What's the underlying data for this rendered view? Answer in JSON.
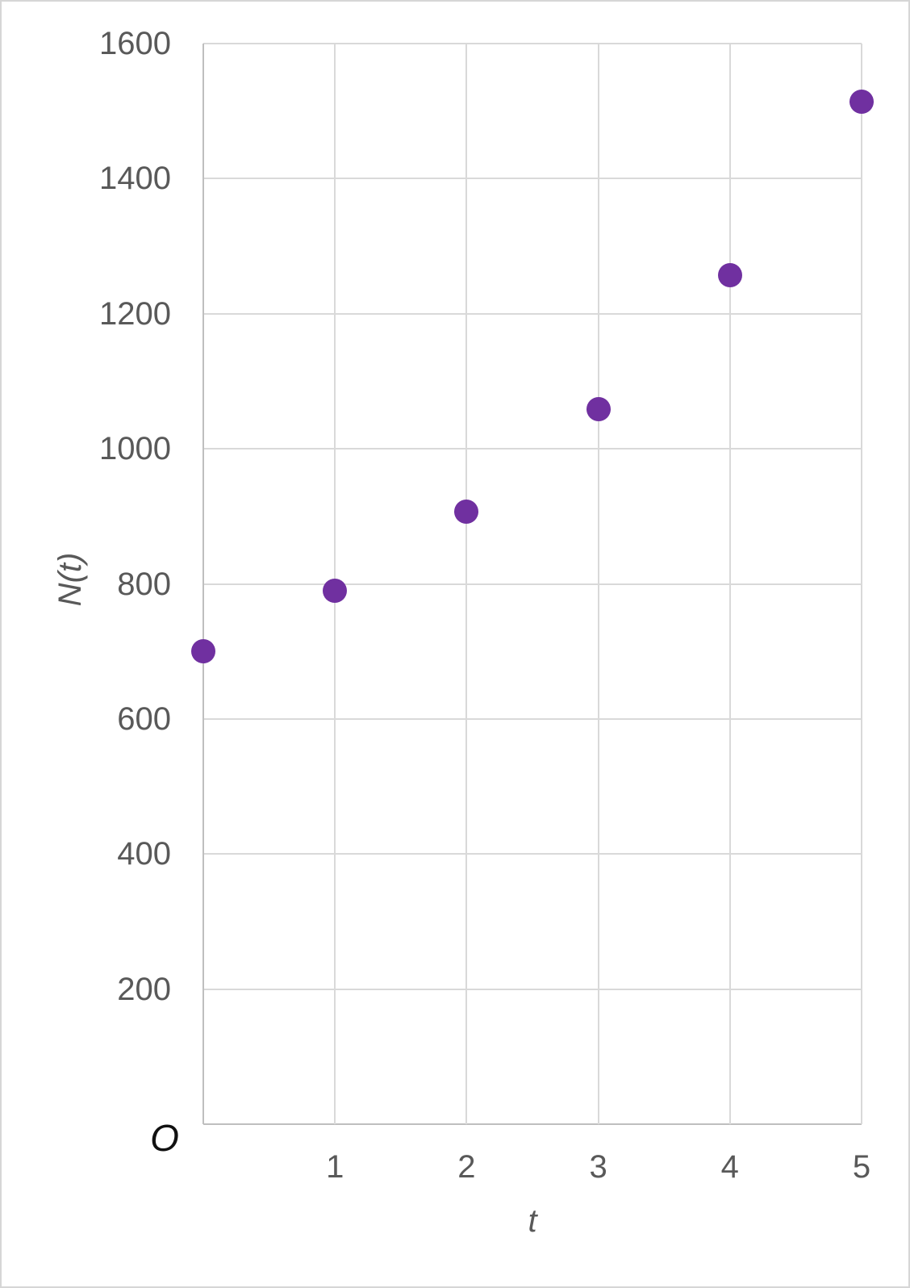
{
  "chart_data": {
    "type": "scatter",
    "x": [
      0,
      1,
      2,
      3,
      4,
      5
    ],
    "y": [
      700,
      790,
      907,
      1059,
      1257,
      1514
    ],
    "series_name": "N(t) vs t",
    "title": "",
    "xlabel": "t",
    "ylabel": "N(t)",
    "origin_label": "O",
    "xlim": [
      0,
      5
    ],
    "ylim": [
      0,
      1600
    ],
    "x_ticks": [
      1,
      2,
      3,
      4,
      5
    ],
    "y_ticks": [
      1600,
      1400,
      1200,
      1000,
      800,
      600,
      400,
      200
    ],
    "grid": true,
    "legend": false,
    "marker_color": "#7030A0",
    "gridline_color": "#d9d9d9",
    "axis_line_color": "#bfbfbf",
    "tick_label_color": "#595959"
  }
}
